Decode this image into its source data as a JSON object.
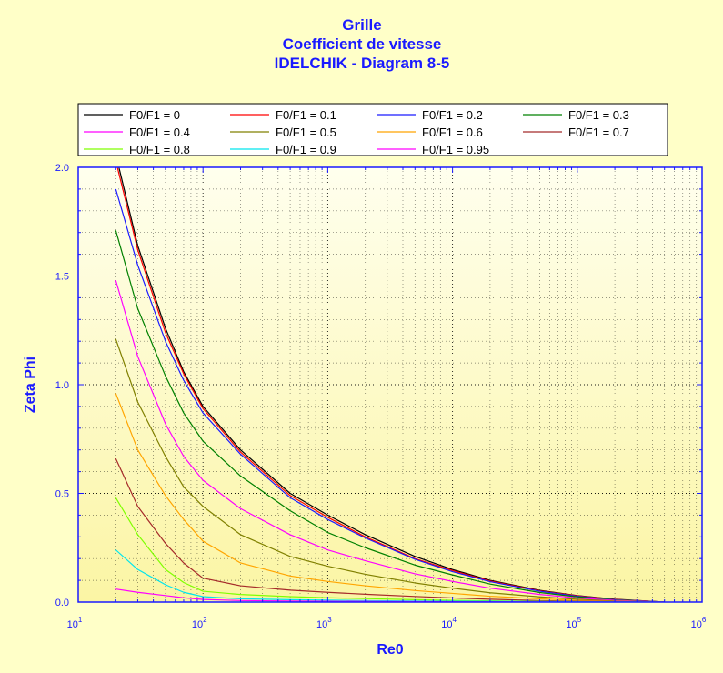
{
  "chart_data": {
    "type": "line",
    "title": [
      "Grille",
      "Coefficient de vitesse",
      "IDELCHIK - Diagram 8-5"
    ],
    "xlabel": "Re0",
    "ylabel": "Zeta Phi",
    "xscale": "log",
    "xlim": [
      10,
      1000000
    ],
    "ylim": [
      0,
      2.0
    ],
    "x_ticks": [
      {
        "base": "10",
        "exp": "1"
      },
      {
        "base": "10",
        "exp": "2"
      },
      {
        "base": "10",
        "exp": "3"
      },
      {
        "base": "10",
        "exp": "4"
      },
      {
        "base": "10",
        "exp": "5"
      },
      {
        "base": "10",
        "exp": "6"
      }
    ],
    "y_ticks": [
      "0.0",
      "0.5",
      "1.0",
      "1.5",
      "2.0"
    ],
    "y_tick_values": [
      0,
      0.5,
      1.0,
      1.5,
      2.0
    ],
    "grid": true,
    "legend_position": "top",
    "colors": {
      "title": "#1a1aff",
      "background": "#ffffc8",
      "plot_background_top": "#ffffee",
      "plot_background_bottom": "#fbf6a6"
    },
    "x": [
      20,
      30,
      50,
      70,
      100,
      200,
      500,
      1000,
      2000,
      5000,
      10000,
      20000,
      50000,
      100000,
      200000,
      500000
    ],
    "series": [
      {
        "name": "F0/F1 = 0",
        "color": "#000000",
        "values": [
          2.06,
          1.64,
          1.26,
          1.06,
          0.9,
          0.7,
          0.5,
          0.4,
          0.31,
          0.21,
          0.15,
          0.1,
          0.054,
          0.03,
          0.013,
          0.0
        ]
      },
      {
        "name": "F0/F1 = 0.1",
        "color": "#ff0000",
        "values": [
          2.03,
          1.62,
          1.24,
          1.05,
          0.89,
          0.69,
          0.49,
          0.39,
          0.3,
          0.2,
          0.145,
          0.097,
          0.052,
          0.029,
          0.012,
          0.0
        ]
      },
      {
        "name": "F0/F1 = 0.2",
        "color": "#1a1aff",
        "values": [
          1.9,
          1.55,
          1.2,
          1.02,
          0.87,
          0.68,
          0.48,
          0.38,
          0.295,
          0.197,
          0.14,
          0.094,
          0.05,
          0.027,
          0.011,
          0.0
        ]
      },
      {
        "name": "F0/F1 = 0.3",
        "color": "#008000",
        "values": [
          1.71,
          1.35,
          1.04,
          0.87,
          0.74,
          0.58,
          0.42,
          0.32,
          0.25,
          0.17,
          0.125,
          0.083,
          0.044,
          0.024,
          0.01,
          0.0
        ]
      },
      {
        "name": "F0/F1 = 0.4",
        "color": "#ff00ff",
        "values": [
          1.48,
          1.13,
          0.82,
          0.67,
          0.56,
          0.43,
          0.31,
          0.24,
          0.19,
          0.13,
          0.095,
          0.064,
          0.035,
          0.019,
          0.008,
          0.0
        ]
      },
      {
        "name": "F0/F1 = 0.5",
        "color": "#808000",
        "values": [
          1.21,
          0.92,
          0.67,
          0.53,
          0.44,
          0.31,
          0.21,
          0.165,
          0.128,
          0.088,
          0.064,
          0.043,
          0.024,
          0.013,
          0.005,
          0.0
        ]
      },
      {
        "name": "F0/F1 = 0.6",
        "color": "#ffa500",
        "values": [
          0.96,
          0.7,
          0.49,
          0.38,
          0.28,
          0.18,
          0.12,
          0.095,
          0.075,
          0.053,
          0.04,
          0.027,
          0.015,
          0.008,
          0.003,
          0.0
        ]
      },
      {
        "name": "F0/F1 = 0.7",
        "color": "#a52a2a",
        "values": [
          0.66,
          0.44,
          0.27,
          0.18,
          0.11,
          0.075,
          0.055,
          0.045,
          0.036,
          0.026,
          0.019,
          0.013,
          0.007,
          0.004,
          0.002,
          0.0
        ]
      },
      {
        "name": "F0/F1 = 0.8",
        "color": "#7fff00",
        "values": [
          0.48,
          0.31,
          0.15,
          0.09,
          0.05,
          0.035,
          0.025,
          0.02,
          0.016,
          0.011,
          0.008,
          0.006,
          0.003,
          0.002,
          0.001,
          0.0
        ]
      },
      {
        "name": "F0/F1 = 0.9",
        "color": "#00e5ee",
        "values": [
          0.24,
          0.15,
          0.08,
          0.045,
          0.025,
          0.015,
          0.011,
          0.009,
          0.007,
          0.005,
          0.004,
          0.003,
          0.002,
          0.001,
          0.0005,
          0.0
        ]
      },
      {
        "name": "F0/F1 = 0.95",
        "color": "#ff00ff",
        "values": [
          0.06,
          0.045,
          0.03,
          0.02,
          0.012,
          0.007,
          0.005,
          0.004,
          0.003,
          0.002,
          0.0015,
          0.001,
          0.0006,
          0.0003,
          0.0001,
          0.0
        ]
      }
    ]
  }
}
